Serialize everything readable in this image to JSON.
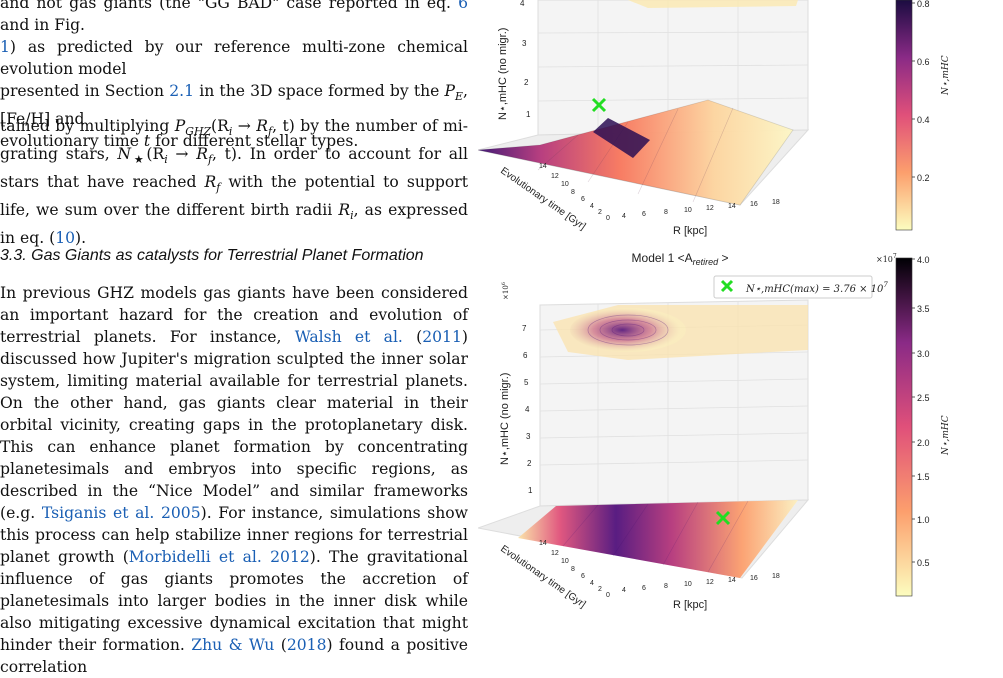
{
  "caption": {
    "line1": "and not gas giants (the \"GG BAD\" case reported in eq. ",
    "ref_eq": "6",
    "line1b": " and in Fig.",
    "ref_fig": "1",
    "line2": ") as predicted by our reference multi-zone chemical evolution model",
    "line3a": "presented in Section ",
    "ref_sec": "2.1",
    "line3b": " in the 3D space formed by the ",
    "pe": "P",
    "pe_sub": "E",
    "line3c": ", [Fe/H] and",
    "line4a": "evolutionary time ",
    "t": "t",
    "line4b": " for different stellar types."
  },
  "paragraph1": {
    "a": "tained by multiplying ",
    "formula1": "P",
    "formula1_sub": "GHZ",
    "formula1_args": "(R",
    "formula1_ri": "i",
    "arrow": " → ",
    "formula1_rf": "R",
    "formula1_rf_sub": "f",
    "formula1_tail": ", t)",
    "b": " by the number of mi-grating stars, ",
    "nstar": "N",
    "nstar_sub": "★",
    "nstar_args": "(R",
    "nstar_ri": "i",
    "nstar_rf": "R",
    "nstar_rf_sub": "f",
    "nstar_tail": ", t)",
    "c": ". In order to account for all stars that have reached ",
    "rf2": "R",
    "rf2_sub": "f",
    "d": " with the potential to support life, we sum over the different birth radii ",
    "ri2": "R",
    "ri2_sub": "i",
    "e": ", as expressed in eq. (",
    "ref_eq": "10",
    "f": ")."
  },
  "section": {
    "heading": "3.3. Gas Giants as catalysts for Terrestrial Planet Formation"
  },
  "paragraph2": {
    "a": "In previous GHZ models gas giants have been considered an important hazard for the creation and evolution of terrestrial planets. For instance, ",
    "cite1": "Walsh et al.",
    "cite1_year": "2011",
    "b": " discussed how Jupiter's migration sculpted the inner solar system, limiting material available for terrestrial planets. On the other hand, gas giants clear material in their orbital vicinity, creating gaps in the protoplanetary disk. This can enhance planet formation by concentrating planetesimals and embryos into specific regions, as described in the “Nice Model” and similar frameworks (e.g. ",
    "cite2": "Tsiganis et al.",
    "cite2_year": "2005",
    "c": "). For instance, simulations show this process can help stabilize inner regions for terrestrial planet growth (",
    "cite3": "Morbidelli et al.",
    "cite3_year": "2012",
    "d": "). The gravitational influence of gas giants promotes the accretion of planetesimals into larger bodies in the inner disk while also mitigating excessive dynamical excitation that might hinder their formation. ",
    "cite4": "Zhu & Wu",
    "cite4_year": "2018",
    "e": " found a positive correlation"
  },
  "figure": {
    "panel_top": {
      "zlabel": "N⋆,mHC (no migr.)",
      "z_ticks": [
        "1",
        "2",
        "3",
        "4"
      ],
      "colorbar_ticks": [
        "0.2",
        "0.4",
        "0.6",
        "0.8"
      ],
      "colorbar_label": "N⋆,mHC",
      "time_label": "Evolutionary time [Gyr]",
      "time_ticks": [
        "14",
        "12",
        "10",
        "8",
        "6",
        "4",
        "2",
        "0"
      ],
      "r_label": "R [kpc]",
      "r_ticks": [
        "4",
        "6",
        "8",
        "10",
        "12",
        "14",
        "16",
        "18"
      ]
    },
    "panel_bottom": {
      "title": "Model 1 <A",
      "title_sub": "retired",
      "title_end": " >",
      "legend": "N⋆,mHC(max) = 3.76 × 10",
      "legend_exp": "7",
      "z_scale": "×10",
      "z_scale_exp": "6",
      "zlabel": "N⋆,mHC (no migr.)",
      "z_ticks": [
        "1",
        "2",
        "3",
        "4",
        "5",
        "6",
        "7"
      ],
      "colorbar_scale": "×10",
      "colorbar_scale_exp": "7",
      "colorbar_ticks": [
        "4.0",
        "3.5",
        "3.0",
        "2.5",
        "2.0",
        "1.5",
        "1.0",
        "0.5"
      ],
      "colorbar_label": "N⋆,mHC",
      "time_label": "Evolutionary time [Gyr]",
      "time_ticks": [
        "14",
        "12",
        "10",
        "8",
        "6",
        "4",
        "2",
        "0"
      ],
      "r_label": "R [kpc]",
      "r_ticks": [
        "4",
        "6",
        "8",
        "10",
        "12",
        "14",
        "16",
        "18"
      ]
    },
    "colors": {
      "magma_dark": "#1b0c41",
      "magma_mid": "#b5367a",
      "magma_light": "#fcfdbf",
      "marker": "#22dd22"
    }
  }
}
